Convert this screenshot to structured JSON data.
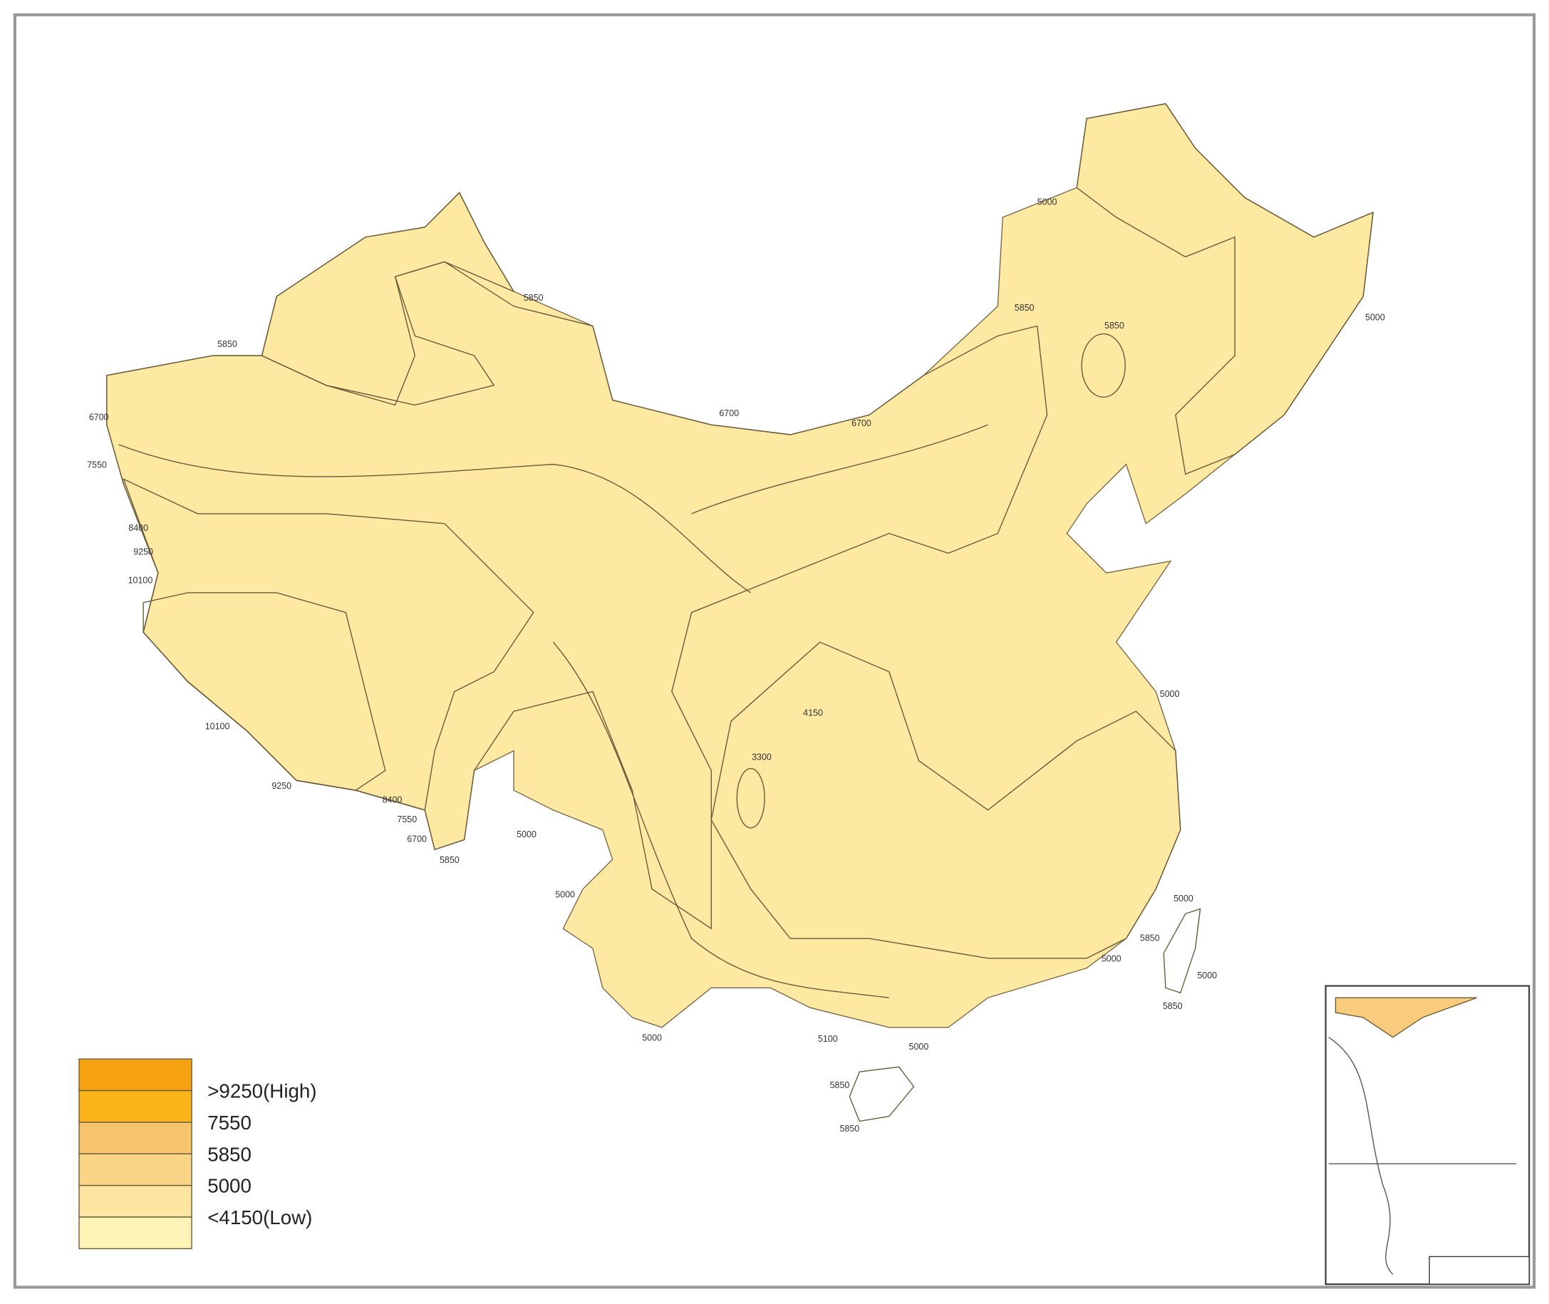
{
  "legend": [
    ">9250(High)",
    "7550",
    "5850",
    "5000",
    "<4150(Low)"
  ],
  "contour_labels": [
    "5000",
    "5850",
    "5850",
    "5850",
    "5850",
    "5000",
    "6700",
    "6700",
    "6700",
    "7550",
    "8400",
    "9250",
    "10100",
    "10100",
    "9250",
    "8400",
    "7550",
    "6700",
    "5850",
    "5000",
    "5000",
    "4150",
    "3300",
    "5000",
    "5000",
    "5850",
    "5000",
    "5000",
    "5850",
    "5000",
    "5100",
    "5000",
    "5850",
    "5850"
  ]
}
